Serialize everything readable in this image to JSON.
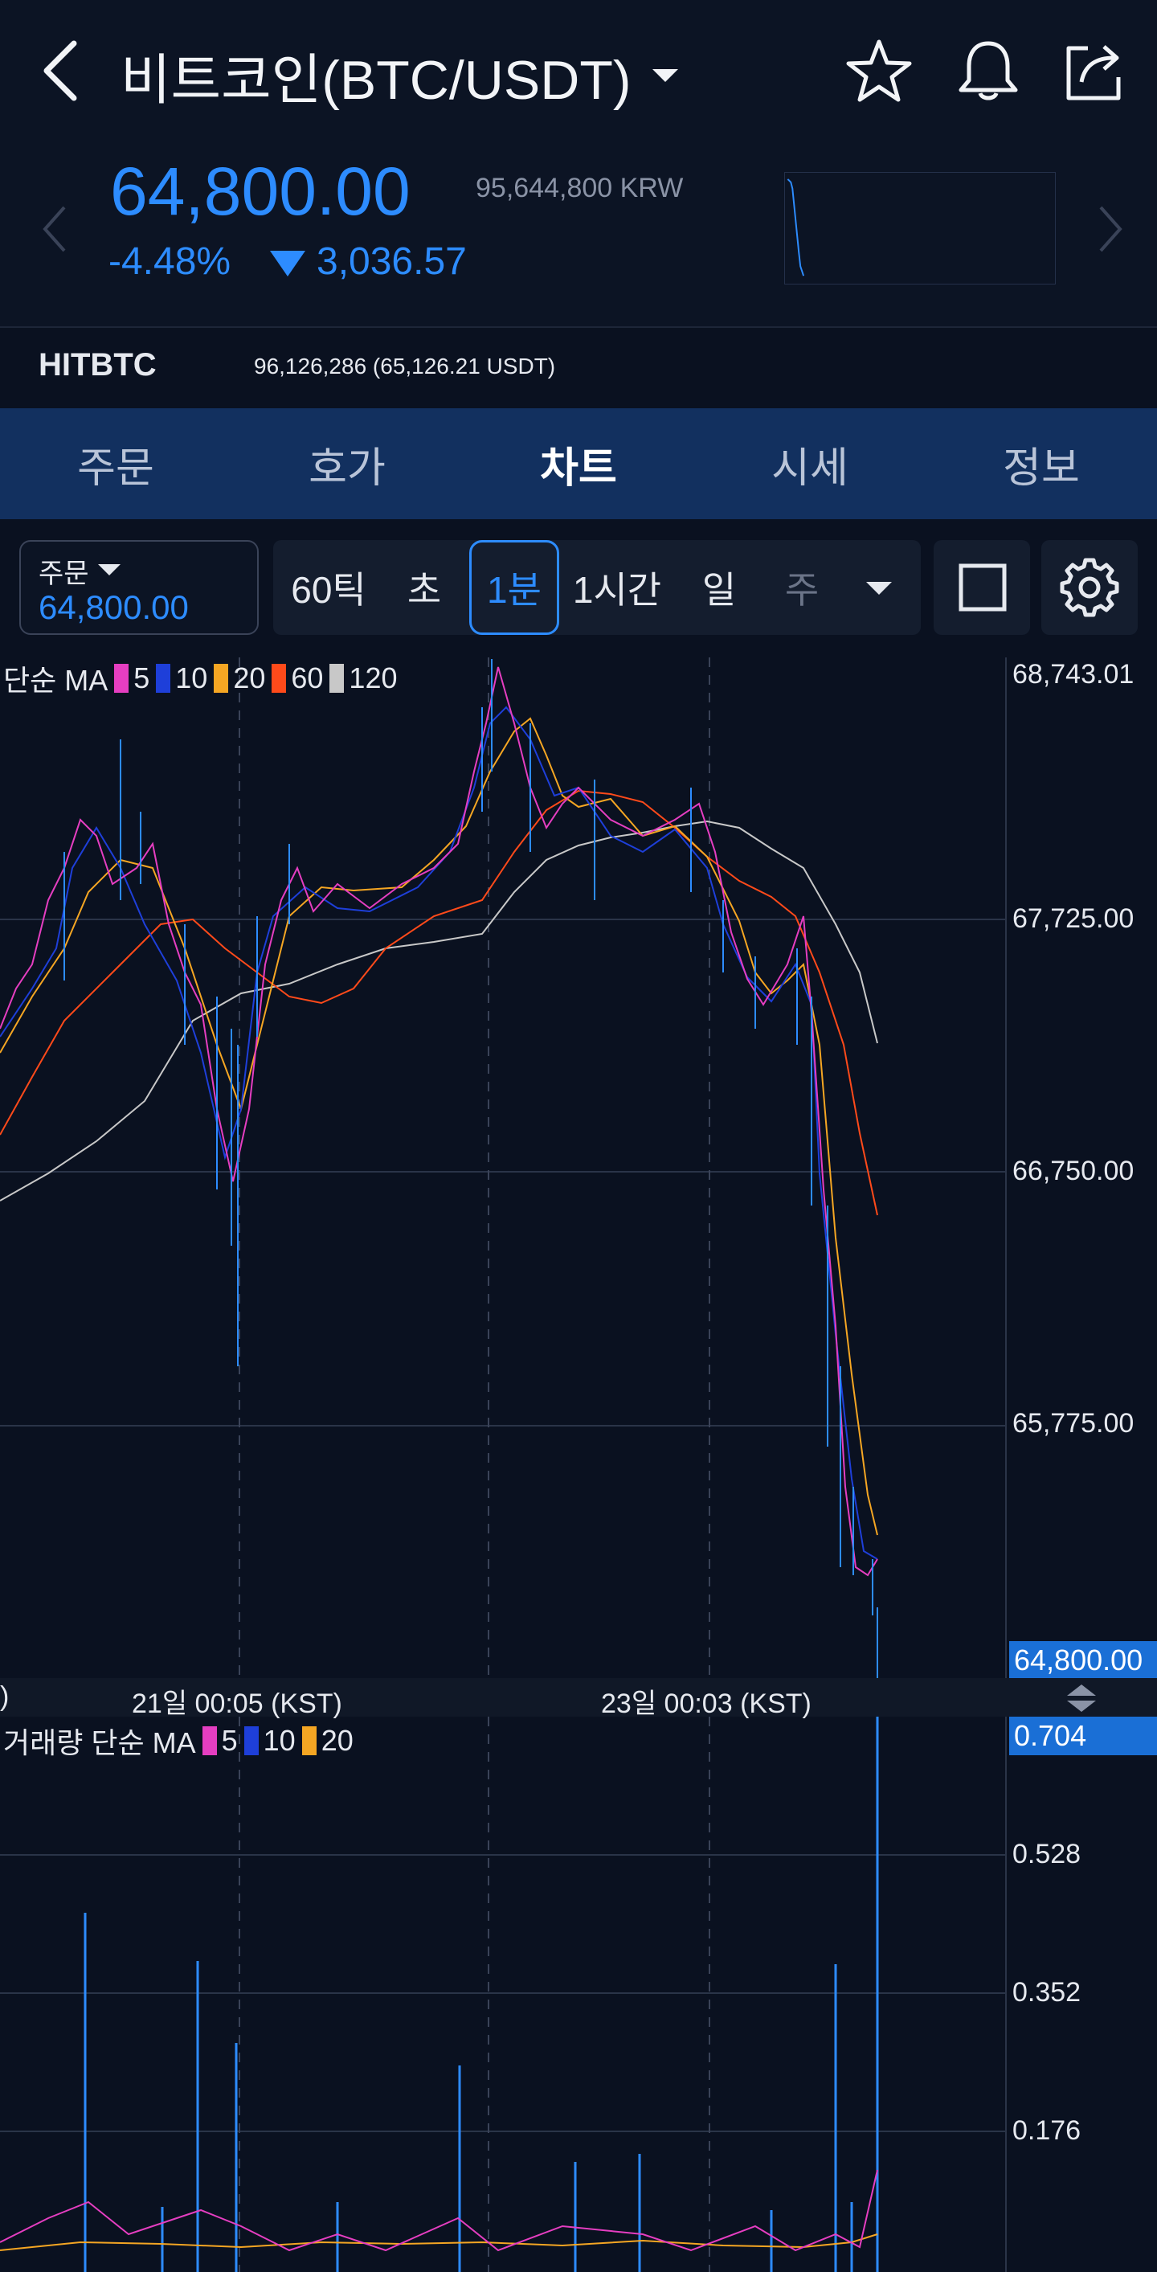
{
  "header": {
    "title": "비트코인(BTC/USDT)",
    "icons": [
      "back-icon",
      "star-icon",
      "bell-icon",
      "share-icon"
    ]
  },
  "ticker": {
    "price": "64,800.00",
    "krw": "95,644,800 KRW",
    "change_pct": "-4.48%",
    "change_abs": "3,036.57",
    "change_direction": "down"
  },
  "exchange": {
    "name": "HITBTC",
    "price": "96,126,286 (65,126.21 USDT)"
  },
  "tabs": [
    {
      "label": "주문",
      "active": false
    },
    {
      "label": "호가",
      "active": false
    },
    {
      "label": "차트",
      "active": true
    },
    {
      "label": "시세",
      "active": false
    },
    {
      "label": "정보",
      "active": false
    }
  ],
  "toolbar": {
    "order_label": "주문",
    "order_value": "64,800.00",
    "intervals": [
      "60틱",
      "초",
      "1분",
      "1시간",
      "일",
      "주"
    ],
    "selected_interval": "1분"
  },
  "chart": {
    "ma_legend": {
      "prefix": "단순 MA",
      "periods": [
        "5",
        "10",
        "20",
        "60",
        "120"
      ]
    },
    "price_ticks": [
      "68,743.01",
      "67,725.00",
      "66,750.00",
      "65,775.00"
    ],
    "current_price_tag": "64,800.00",
    "time_labels": [
      ")",
      "21일 00:05 (KST)",
      "23일 00:03 (KST)"
    ],
    "vol_legend": {
      "prefix": "거래량 단순 MA",
      "periods": [
        "5",
        "10",
        "20"
      ]
    },
    "vol_tag": "0.704",
    "vol_ticks": [
      "0.528",
      "0.352",
      "0.176"
    ]
  },
  "colors": {
    "accent": "#2d8cff",
    "ma5": "#e53ec1",
    "ma10": "#1e3fd9",
    "ma20": "#f5a623",
    "ma60": "#ff4a1a",
    "ma120": "#c8c8c8",
    "tab_bg": "#12305f"
  }
}
